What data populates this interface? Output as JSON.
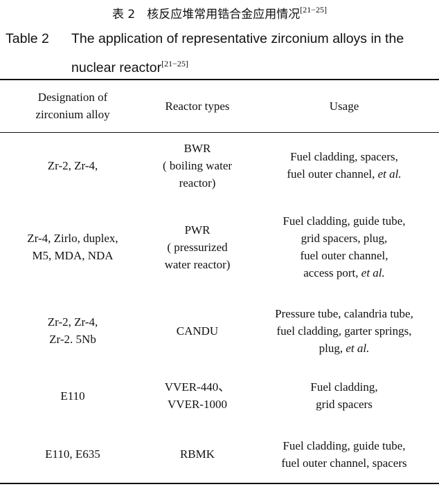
{
  "title_cn": "表 2　核反应堆常用锆合金应用情况",
  "title_ref": "[21−25]",
  "title_en": {
    "label": "Table 2",
    "line1": "The application of representative zirconium alloys in the",
    "line2": "nuclear reactor",
    "ref": "[21−25]"
  },
  "headers": [
    [
      "Designation of",
      "zirconium alloy"
    ],
    [
      "Reactor types"
    ],
    [
      "Usage"
    ]
  ],
  "rows": [
    {
      "alloy": [
        "Zr-2, Zr-4,"
      ],
      "reactor": [
        "BWR",
        "( boiling water",
        "reactor)"
      ],
      "usage": [
        {
          "t": "Fuel cladding, spacers,"
        },
        {
          "t": "fuel outer channel, ",
          "em": "et al."
        }
      ],
      "height": 96
    },
    {
      "alloy": [
        "Zr-4, Zirlo, duplex,",
        "M5, MDA, NDA"
      ],
      "reactor": [
        "PWR",
        "( pressurized",
        "water reactor)"
      ],
      "usage": [
        {
          "t": "Fuel cladding, guide tube,"
        },
        {
          "t": "grid spacers, plug,"
        },
        {
          "t": "fuel outer channel,"
        },
        {
          "t": "access port, ",
          "em": "et al."
        }
      ],
      "height": 140
    },
    {
      "alloy": [
        "Zr-2, Zr-4,",
        "Zr-2. 5Nb"
      ],
      "reactor": [
        "CANDU"
      ],
      "usage": [
        {
          "t": "Pressure tube, calandria tube,"
        },
        {
          "t": "fuel cladding, garter springs,"
        },
        {
          "t": "plug, ",
          "em": "et al."
        }
      ],
      "height": 102
    },
    {
      "alloy": [
        "E110"
      ],
      "reactor": [
        "VVER-440、",
        "VVER-1000"
      ],
      "usage": [
        {
          "t": "Fuel cladding,"
        },
        {
          "t": "grid spacers"
        }
      ],
      "height": 86
    },
    {
      "alloy": [
        "E110, E635"
      ],
      "reactor": [
        "RBMK"
      ],
      "usage": [
        {
          "t": "Fuel cladding, guide tube,"
        },
        {
          "t": "fuel outer channel, spacers"
        }
      ],
      "height": 84
    }
  ]
}
